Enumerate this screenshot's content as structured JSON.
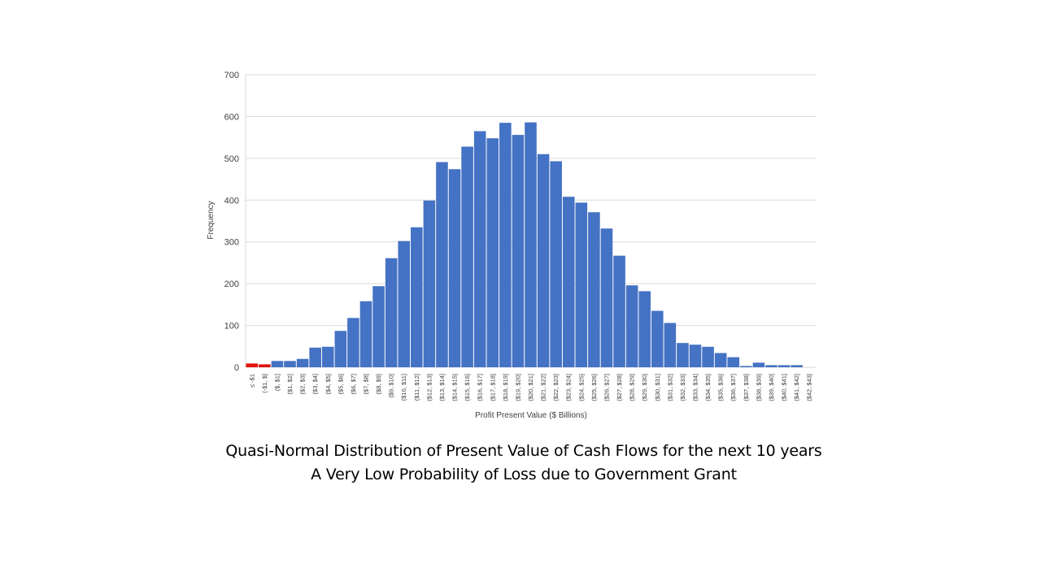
{
  "chart_data": {
    "type": "bar",
    "xlabel": "Profit Present Value ($ Billions)",
    "ylabel": "Frequency",
    "ylim": [
      0,
      700
    ],
    "yticks": [
      0,
      100,
      200,
      300,
      400,
      500,
      600,
      700
    ],
    "grid": true,
    "categories": [
      "≤ -$1",
      "(-$1, $]",
      "($, $1]",
      "($1, $2]",
      "($2, $3]",
      "($3, $4]",
      "($4, $5]",
      "($5, $6]",
      "($6, $7]",
      "($7, $8]",
      "($8, $9]",
      "($9, $10]",
      "($10, $11]",
      "($11, $12]",
      "($12, $13]",
      "($13, $14]",
      "($14, $15]",
      "($15, $16]",
      "($16, $17]",
      "($17, $18]",
      "($18, $19]",
      "($19, $20]",
      "($20, $21]",
      "($21, $22]",
      "($22, $23]",
      "($23, $24]",
      "($24, $25]",
      "($25, $26]",
      "($26, $27]",
      "($27, $28]",
      "($28, $29]",
      "($29, $30]",
      "($30, $31]",
      "($31, $32]",
      "($32, $33]",
      "($33, $34]",
      "($34, $35]",
      "($35, $36]",
      "($36, $37]",
      "($37, $38]",
      "($38, $39]",
      "($39, $40]",
      "($40, $41]",
      "($41, $42]",
      "($42, $43]"
    ],
    "values": [
      9,
      7,
      15,
      15,
      20,
      47,
      49,
      87,
      118,
      158,
      194,
      261,
      302,
      335,
      399,
      491,
      474,
      528,
      565,
      548,
      585,
      556,
      586,
      510,
      493,
      408,
      394,
      371,
      332,
      267,
      196,
      182,
      135,
      106,
      58,
      54,
      49,
      34,
      24,
      3,
      11,
      5,
      5,
      5,
      0
    ],
    "colors": {
      "loss": "#e3120b",
      "default": "#4472c4",
      "grid": "#d9d9d9",
      "text": "#404040"
    },
    "highlight_indices": [
      0,
      1
    ]
  },
  "caption": {
    "line1": "Quasi-Normal Distribution of Present Value of Cash Flows for the next 10 years",
    "line2": "A Very Low Probability of Loss due to Government Grant"
  }
}
